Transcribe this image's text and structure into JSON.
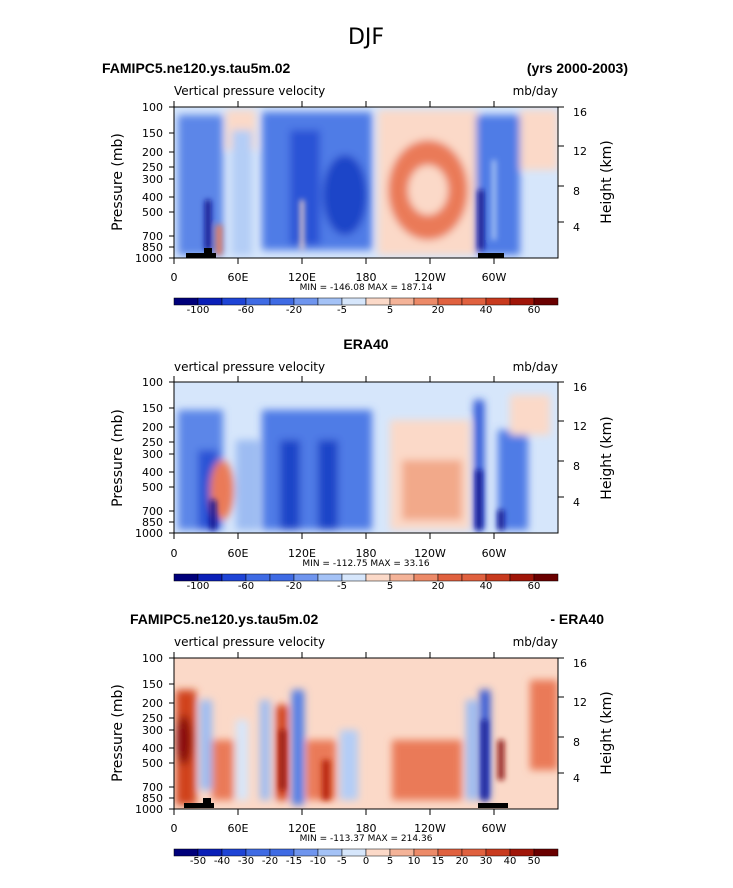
{
  "title": "DJF",
  "colors": {
    "neg_dark": "#0a0a8a",
    "neg_mid": "#2a52d6",
    "neg_light": "#9dbcf2",
    "neutral": "#d6e6fb",
    "pos_light": "#fbd9c8",
    "pos_mid": "#ea7a58",
    "pos_dark": "#8a0a0a"
  },
  "chart_data": [
    {
      "type": "heatmap",
      "title_left": "FAMIPC5.ne120.ys.tau5m.02",
      "title_right": "(yrs 2000-2003)",
      "subtitle_left": "Vertical pressure velocity",
      "subtitle_right": "mb/day",
      "ylabel": "Pressure (mb)",
      "ylabel_right": "Height (km)",
      "xticks": [
        "0",
        "60E",
        "120E",
        "180",
        "120W",
        "60W"
      ],
      "yticks": [
        "100",
        "150",
        "200",
        "250",
        "300",
        "400",
        "500",
        "700",
        "850",
        "1000"
      ],
      "yticks_right": [
        "16",
        "12",
        "8",
        "4"
      ],
      "stats": "MIN = -146.08   MAX = 187.14",
      "colorbar_labels": [
        "-100",
        "-60",
        "-20",
        "-5",
        "5",
        "20",
        "40",
        "60"
      ]
    },
    {
      "type": "heatmap",
      "title_center": "ERA40",
      "subtitle_left": "vertical pressure velocity",
      "subtitle_right": "mb/day",
      "ylabel": "Pressure (mb)",
      "ylabel_right": "Height (km)",
      "xticks": [
        "0",
        "60E",
        "120E",
        "180",
        "120W",
        "60W"
      ],
      "yticks": [
        "100",
        "150",
        "200",
        "250",
        "300",
        "400",
        "500",
        "700",
        "850",
        "1000"
      ],
      "yticks_right": [
        "16",
        "12",
        "8",
        "4"
      ],
      "stats": "MIN = -112.75   MAX =  33.16",
      "colorbar_labels": [
        "-100",
        "-60",
        "-20",
        "-5",
        "5",
        "20",
        "40",
        "60"
      ]
    },
    {
      "type": "heatmap",
      "title_left": "FAMIPC5.ne120.ys.tau5m.02",
      "title_right": "- ERA40",
      "subtitle_left": "vertical pressure velocity",
      "subtitle_right": "mb/day",
      "ylabel": "Pressure (mb)",
      "ylabel_right": "Height (km)",
      "xticks": [
        "0",
        "60E",
        "120E",
        "180",
        "120W",
        "60W"
      ],
      "yticks": [
        "100",
        "150",
        "200",
        "250",
        "300",
        "400",
        "500",
        "700",
        "850",
        "1000"
      ],
      "yticks_right": [
        "16",
        "12",
        "8",
        "4"
      ],
      "stats": "MIN = -113.37   MAX = 214.36",
      "colorbar_labels": [
        "-50",
        "-40",
        "-30",
        "-20",
        "-15",
        "-10",
        "-5",
        "0",
        "5",
        "10",
        "15",
        "20",
        "30",
        "40",
        "50"
      ]
    }
  ]
}
